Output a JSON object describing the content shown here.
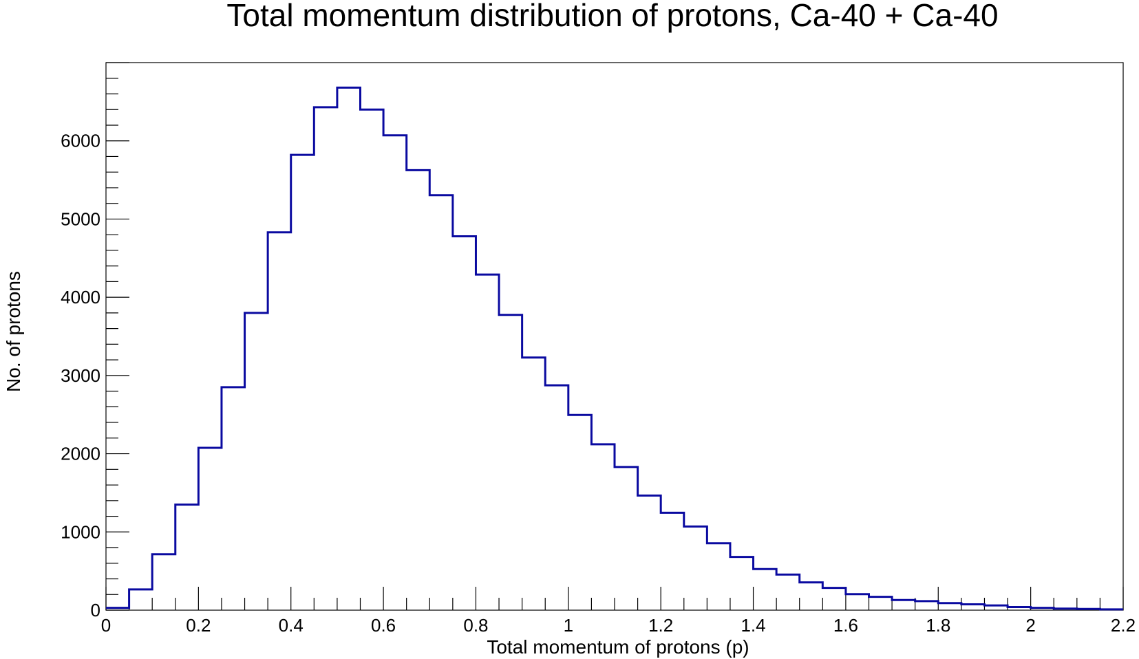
{
  "chart_data": {
    "type": "bar",
    "title": "Total momentum distribution of protons, Ca-40 + Ca-40",
    "xlabel": "Total momentum of protons (p)",
    "ylabel": "No. of protons",
    "xlim": [
      0,
      2.2
    ],
    "ylim": [
      0,
      7000
    ],
    "bin_width": 0.05,
    "x_ticks": [
      "0",
      "0.2",
      "0.4",
      "0.6",
      "0.8",
      "1",
      "1.2",
      "1.4",
      "1.6",
      "1.8",
      "2",
      "2.2"
    ],
    "y_ticks": [
      "0",
      "1000",
      "2000",
      "3000",
      "4000",
      "5000",
      "6000"
    ],
    "series": [
      {
        "color": "#0a0aa0",
        "bin_edges_start": 0,
        "values": [
          30,
          265,
          715,
          1350,
          2075,
          2850,
          3800,
          4830,
          5820,
          6430,
          6680,
          6400,
          6070,
          5625,
          5305,
          4780,
          4290,
          3775,
          3230,
          2875,
          2495,
          2120,
          1830,
          1465,
          1245,
          1070,
          855,
          680,
          525,
          455,
          355,
          285,
          205,
          170,
          130,
          115,
          90,
          75,
          60,
          40,
          30,
          20,
          15,
          10
        ]
      }
    ],
    "grid": false,
    "legend": "none"
  }
}
